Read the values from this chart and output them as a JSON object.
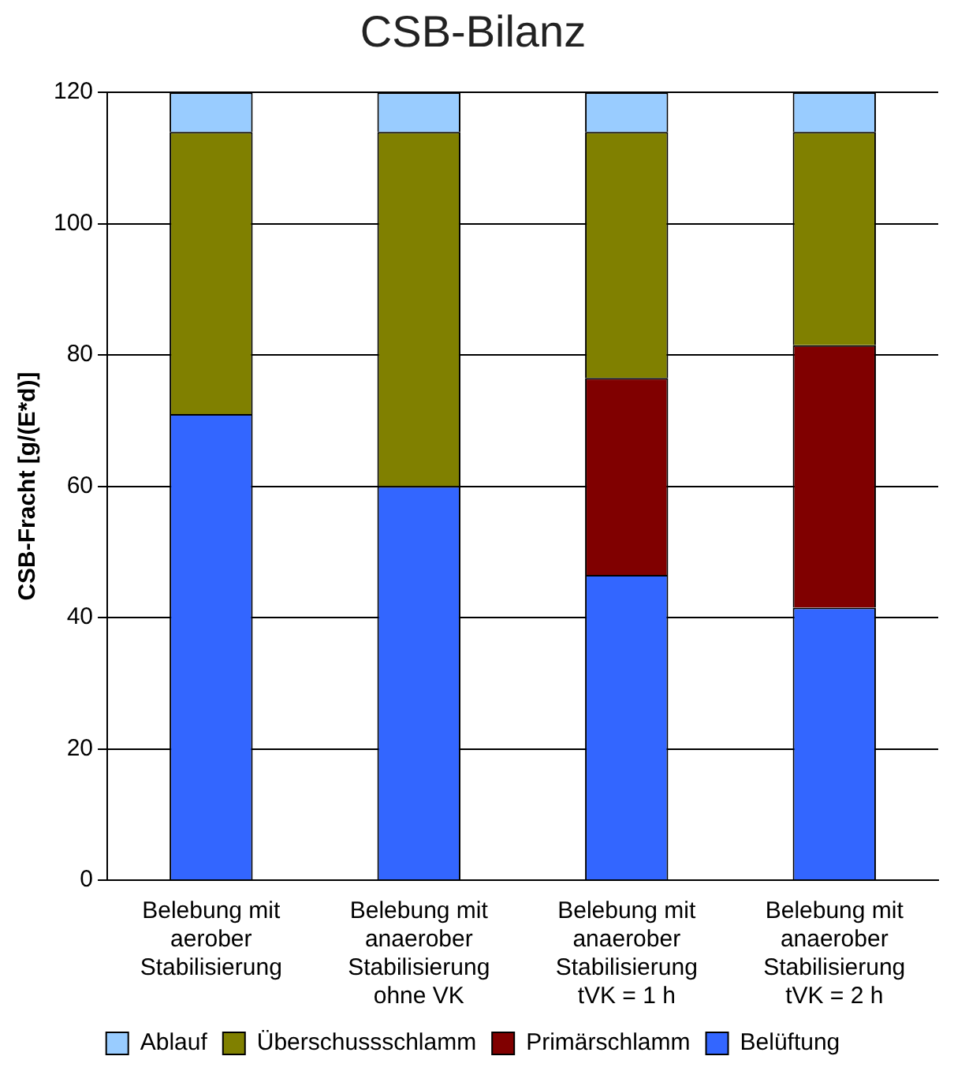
{
  "chart_data": {
    "type": "bar",
    "title": "CSB-Bilanz",
    "ylabel": "CSB-Fracht [g/(E*d)]",
    "categories": [
      "Belebung mit\naerober\nStabilisierung",
      "Belebung mit\nanaerober\nStabilisierung\nohne VK",
      "Belebung mit\nanaerober\nStabilisierung\ntVK = 1 h",
      "Belebung mit\nanaerober\nStabilisierung\ntVK = 2 h"
    ],
    "series": [
      {
        "name": "Belüftung",
        "color": "#3366ff",
        "values": [
          71,
          60,
          46.5,
          41.5
        ]
      },
      {
        "name": "Primärschlamm",
        "color": "#800000",
        "values": [
          null,
          null,
          30,
          40
        ]
      },
      {
        "name": "Überschussschlamm",
        "color": "#808000",
        "values": [
          43,
          54,
          37.5,
          32.5
        ]
      },
      {
        "name": "Ablauf",
        "color": "#99ccff",
        "values": [
          6,
          6,
          6,
          6
        ]
      }
    ],
    "stacked": true,
    "ylim": [
      0,
      120
    ],
    "yticks": [
      0,
      20,
      40,
      60,
      80,
      100,
      120
    ],
    "grid": "y",
    "legend": "bottom"
  }
}
